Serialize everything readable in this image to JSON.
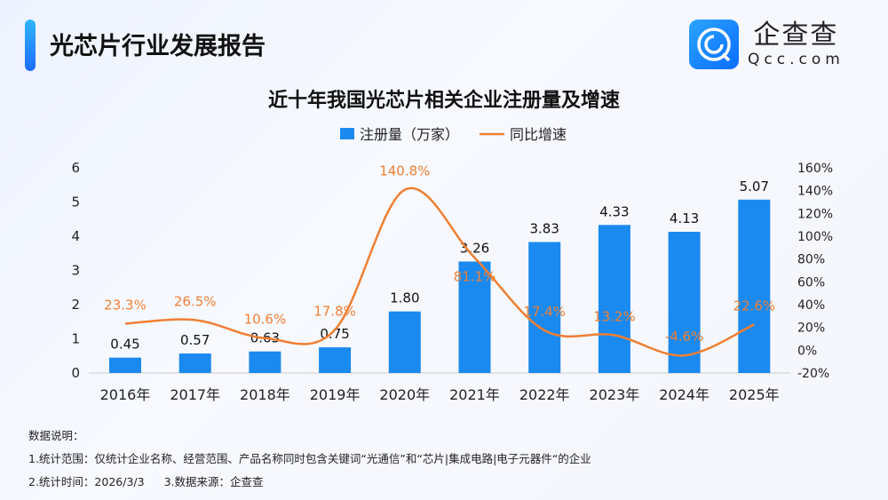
{
  "header": {
    "title": "光芯片行业发展报告",
    "logo_cn": "企查查",
    "logo_en": "Qcc.com"
  },
  "chart_data": {
    "type": "bar+line",
    "title": "近十年我国光芯片相关企业注册量及增速",
    "categories": [
      "2016年",
      "2017年",
      "2018年",
      "2019年",
      "2020年",
      "2021年",
      "2022年",
      "2023年",
      "2024年",
      "2025年"
    ],
    "series": [
      {
        "name": "注册量（万家）",
        "type": "bar",
        "axis": "left",
        "color": "#1a8af0",
        "values": [
          0.45,
          0.57,
          0.63,
          0.75,
          1.8,
          3.26,
          3.83,
          4.33,
          4.13,
          5.07
        ],
        "labels": [
          "0.45",
          "0.57",
          "0.63",
          "0.75",
          "1.80",
          "3.26",
          "3.83",
          "4.33",
          "4.13",
          "5.07"
        ]
      },
      {
        "name": "同比增速",
        "type": "line",
        "axis": "right",
        "color": "#f07f32",
        "values": [
          23.3,
          26.5,
          10.6,
          17.8,
          140.8,
          81.1,
          17.4,
          13.2,
          -4.6,
          22.6
        ],
        "labels": [
          "23.3%",
          "26.5%",
          "10.6%",
          "17.8%",
          "140.8%",
          "81.1%",
          "17.4%",
          "13.2%",
          "-4.6%",
          "22.6%"
        ]
      }
    ],
    "left_axis": {
      "ylim": [
        0,
        6
      ],
      "ticks": [
        "0",
        "1",
        "2",
        "3",
        "4",
        "5",
        "6"
      ]
    },
    "right_axis": {
      "ylim": [
        -20,
        160
      ],
      "ticks": [
        "-20%",
        "0%",
        "20%",
        "40%",
        "60%",
        "80%",
        "100%",
        "120%",
        "140%",
        "160%"
      ]
    },
    "legend": "top-center",
    "grid": false
  },
  "notes": [
    "数据说明：",
    "1.统计范围：仅统计企业名称、经营范围、产品名称同时包含关键词“光通信”和“芯片|集成电路|电子元器件“的企业",
    "2.统计时间：2026/3/3",
    "3.数据来源：企查查"
  ]
}
